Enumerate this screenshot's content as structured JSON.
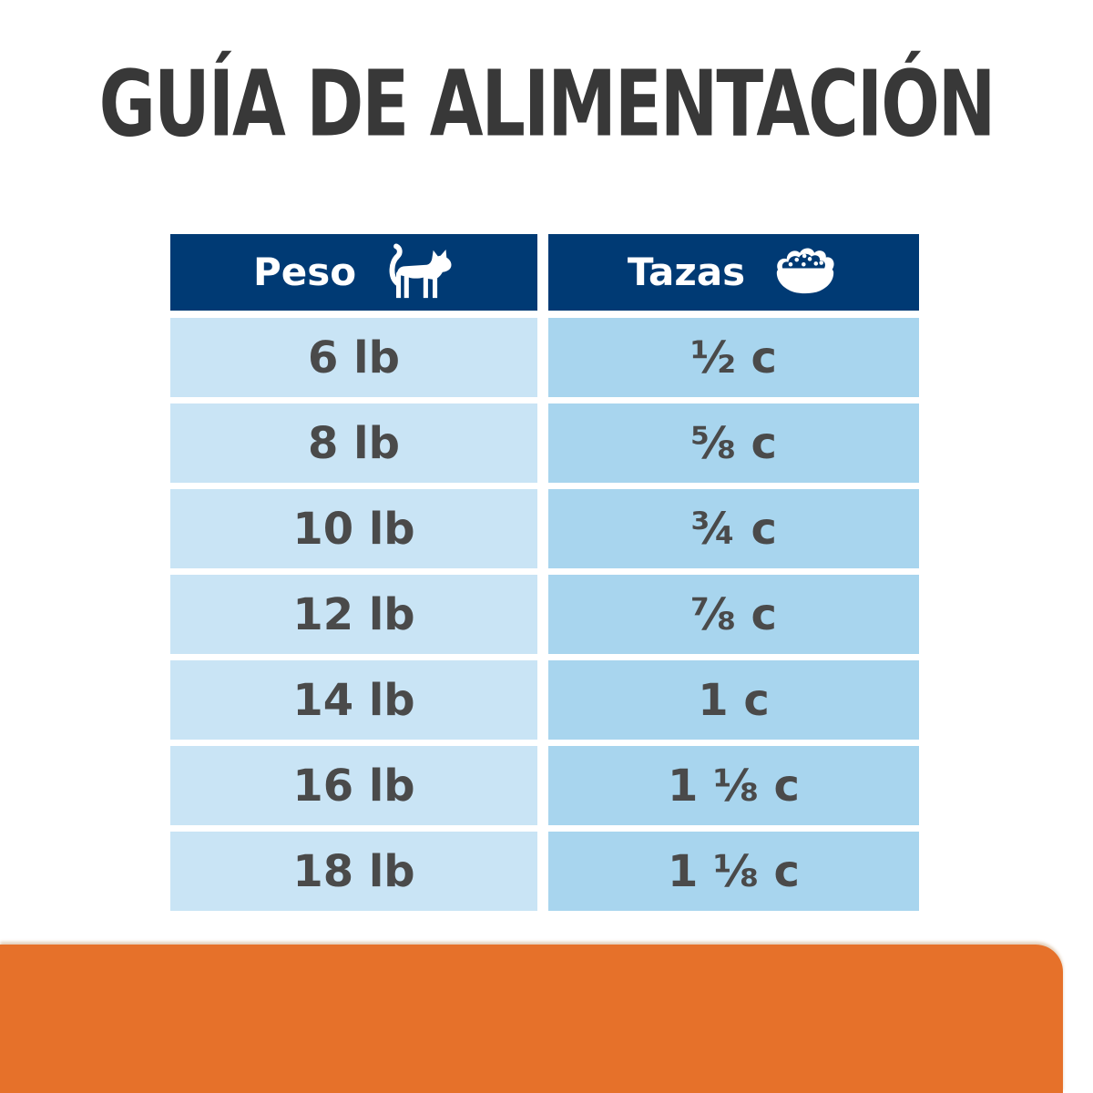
{
  "title": "GUÍA DE ALIMENTACIÓN",
  "table": {
    "headers": [
      {
        "label": "Peso",
        "icon": "cat-icon"
      },
      {
        "label": "Tazas",
        "icon": "bowl-icon"
      }
    ],
    "rows": [
      {
        "peso": "6 lb",
        "tazas": "½ c"
      },
      {
        "peso": "8 lb",
        "tazas": "⅝ c"
      },
      {
        "peso": "10 lb",
        "tazas": "¾ c"
      },
      {
        "peso": "12 lb",
        "tazas": "⅞ c"
      },
      {
        "peso": "14 lb",
        "tazas": "1 c"
      },
      {
        "peso": "16 lb",
        "tazas": "1 ⅛ c"
      },
      {
        "peso": "18 lb",
        "tazas": "1 ⅛ c"
      }
    ]
  },
  "chart_data": {
    "type": "table",
    "title": "GUÍA DE ALIMENTACIÓN",
    "columns": [
      "Peso",
      "Tazas"
    ],
    "rows": [
      [
        "6 lb",
        "½ c"
      ],
      [
        "8 lb",
        "⅝ c"
      ],
      [
        "10 lb",
        "¾ c"
      ],
      [
        "12 lb",
        "⅞ c"
      ],
      [
        "14 lb",
        "1 c"
      ],
      [
        "16 lb",
        "1 ⅛ c"
      ],
      [
        "18 lb",
        "1 ⅛ c"
      ]
    ]
  },
  "colors": {
    "header_navy": "#003A74",
    "cell_light_blue": "#C9E4F5",
    "cell_mid_blue": "#A8D5EE",
    "accent_orange": "#E6712A",
    "title_text": "#383838",
    "cell_text": "#4A4A4A",
    "header_text": "#FFFFFF"
  }
}
